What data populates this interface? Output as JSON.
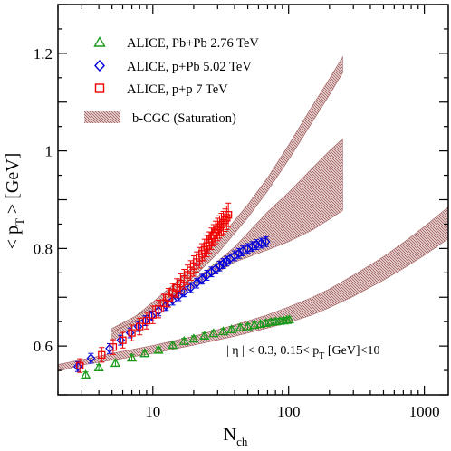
{
  "chart_data": {
    "type": "scatter",
    "xlabel": {
      "main": "N",
      "sub": "ch"
    },
    "ylabel": {
      "open": "< p",
      "sub": "T",
      "close": " > [GeV]"
    },
    "xscale": "log",
    "xlim": [
      2,
      1500
    ],
    "ylim": [
      0.5,
      1.3
    ],
    "x_ticks": [
      10,
      100,
      1000
    ],
    "x_tick_labels": [
      "10",
      "100",
      "1000"
    ],
    "y_ticks": [
      0.6,
      0.8,
      1.0,
      1.2
    ],
    "y_tick_labels": [
      "0.6",
      "0.8",
      "1",
      "1.2"
    ],
    "grid": false,
    "legend_position": "top-left",
    "annotation": {
      "part1": "| η | < 0.3,  0.15< p",
      "sub": "T",
      "part2": " [GeV]<10"
    },
    "series": [
      {
        "name": "ALICE, Pb+Pb 2.76 TeV",
        "marker": "triangle",
        "color": "#1a9a1a",
        "points": [
          [
            3.2,
            0.541
          ],
          [
            4,
            0.556
          ],
          [
            5.3,
            0.565
          ],
          [
            7,
            0.576
          ],
          [
            8.7,
            0.585
          ],
          [
            11,
            0.592
          ],
          [
            14,
            0.602
          ],
          [
            17,
            0.61
          ],
          [
            20,
            0.615
          ],
          [
            24,
            0.621
          ],
          [
            28,
            0.626
          ],
          [
            33,
            0.63
          ],
          [
            38,
            0.634
          ],
          [
            44,
            0.638
          ],
          [
            50,
            0.64
          ],
          [
            56,
            0.643
          ],
          [
            62,
            0.645
          ],
          [
            68,
            0.647
          ],
          [
            74,
            0.649
          ],
          [
            80,
            0.65
          ],
          [
            86,
            0.651
          ],
          [
            92,
            0.652
          ],
          [
            97,
            0.653
          ],
          [
            101,
            0.654
          ]
        ],
        "errors": [
          0.006,
          0.006,
          0.006,
          0.006,
          0.006,
          0.006,
          0.006,
          0.006,
          0.006,
          0.006,
          0.006,
          0.006,
          0.006,
          0.006,
          0.006,
          0.006,
          0.006,
          0.006,
          0.006,
          0.006,
          0.006,
          0.006,
          0.006,
          0.006
        ]
      },
      {
        "name": "ALICE, p+Pb 5.02 TeV",
        "marker": "diamond",
        "color": "#0000dd",
        "points": [
          [
            2.8,
            0.558
          ],
          [
            3.5,
            0.575
          ],
          [
            4.8,
            0.595
          ],
          [
            5.8,
            0.612
          ],
          [
            6.8,
            0.627
          ],
          [
            7.8,
            0.64
          ],
          [
            8.8,
            0.652
          ],
          [
            9.8,
            0.662
          ],
          [
            11,
            0.672
          ],
          [
            12.5,
            0.683
          ],
          [
            14,
            0.694
          ],
          [
            15.5,
            0.703
          ],
          [
            17,
            0.711
          ],
          [
            19,
            0.72
          ],
          [
            21,
            0.729
          ],
          [
            23,
            0.737
          ],
          [
            25,
            0.745
          ],
          [
            27,
            0.752
          ],
          [
            29,
            0.758
          ],
          [
            31,
            0.764
          ],
          [
            33,
            0.769
          ],
          [
            35,
            0.774
          ],
          [
            37,
            0.779
          ],
          [
            40,
            0.785
          ],
          [
            43,
            0.79
          ],
          [
            46,
            0.795
          ],
          [
            50,
            0.8
          ],
          [
            54,
            0.804
          ],
          [
            58,
            0.808
          ],
          [
            63,
            0.811
          ],
          [
            68,
            0.814
          ]
        ],
        "errors": [
          0.01,
          0.01,
          0.01,
          0.01,
          0.01,
          0.01,
          0.01,
          0.01,
          0.01,
          0.01,
          0.01,
          0.01,
          0.01,
          0.01,
          0.01,
          0.01,
          0.01,
          0.01,
          0.01,
          0.01,
          0.01,
          0.01,
          0.01,
          0.01,
          0.01,
          0.01,
          0.01,
          0.01,
          0.01,
          0.01,
          0.01
        ]
      },
      {
        "name": "ALICE, p+p 7 TeV",
        "marker": "square",
        "color": "#ee0000",
        "points": [
          [
            2.9,
            0.56
          ],
          [
            4.2,
            0.582
          ],
          [
            5.1,
            0.598
          ],
          [
            6,
            0.612
          ],
          [
            7,
            0.627
          ],
          [
            8,
            0.64
          ],
          [
            9,
            0.652
          ],
          [
            10,
            0.664
          ],
          [
            11,
            0.676
          ],
          [
            12,
            0.688
          ],
          [
            13,
            0.699
          ],
          [
            14,
            0.709
          ],
          [
            15,
            0.719
          ],
          [
            16,
            0.728
          ],
          [
            17,
            0.737
          ],
          [
            18,
            0.746
          ],
          [
            19,
            0.755
          ],
          [
            20,
            0.764
          ],
          [
            21,
            0.772
          ],
          [
            22,
            0.781
          ],
          [
            23,
            0.789
          ],
          [
            24,
            0.797
          ],
          [
            25,
            0.805
          ],
          [
            26,
            0.812
          ],
          [
            27,
            0.82
          ],
          [
            28,
            0.827
          ],
          [
            29,
            0.833
          ],
          [
            30,
            0.839
          ],
          [
            31,
            0.844
          ],
          [
            32,
            0.849
          ],
          [
            33,
            0.853
          ],
          [
            34,
            0.858
          ],
          [
            35,
            0.863
          ],
          [
            36,
            0.869
          ]
        ],
        "errors": [
          0.014,
          0.015,
          0.015,
          0.016,
          0.016,
          0.017,
          0.017,
          0.018,
          0.018,
          0.018,
          0.019,
          0.019,
          0.019,
          0.02,
          0.02,
          0.02,
          0.02,
          0.021,
          0.021,
          0.021,
          0.021,
          0.022,
          0.022,
          0.022,
          0.022,
          0.022,
          0.023,
          0.023,
          0.023,
          0.023,
          0.023,
          0.023,
          0.024,
          0.024
        ]
      }
    ],
    "bands": [
      {
        "name": "b-CGC (Saturation)",
        "color": "#a06060",
        "x": [
          5,
          7,
          10,
          15,
          20,
          30,
          50,
          70,
          100,
          150,
          200,
          250
        ],
        "lower": [
          0.61,
          0.638,
          0.672,
          0.71,
          0.742,
          0.79,
          0.863,
          0.918,
          0.982,
          1.06,
          1.115,
          1.16
        ],
        "upper": [
          0.625,
          0.655,
          0.69,
          0.732,
          0.765,
          0.815,
          0.89,
          0.945,
          1.012,
          1.093,
          1.148,
          1.193
        ]
      },
      {
        "name": "",
        "color": "#a06060",
        "x": [
          5,
          10,
          15,
          25,
          40,
          70,
          100,
          150,
          200,
          250
        ],
        "lower": [
          0.628,
          0.67,
          0.699,
          0.738,
          0.772,
          0.797,
          0.814,
          0.838,
          0.86,
          0.878
        ],
        "upper": [
          0.636,
          0.68,
          0.712,
          0.755,
          0.803,
          0.875,
          0.915,
          0.965,
          1.0,
          1.025
        ]
      },
      {
        "name": "",
        "color": "#a06060",
        "x": [
          2,
          3,
          5,
          10,
          20,
          40,
          70,
          100,
          150,
          200,
          300,
          500,
          700,
          1000,
          1500
        ],
        "lower": [
          0.548,
          0.561,
          0.571,
          0.585,
          0.602,
          0.62,
          0.637,
          0.648,
          0.664,
          0.679,
          0.702,
          0.735,
          0.759,
          0.786,
          0.82
        ],
        "upper": [
          0.562,
          0.572,
          0.585,
          0.601,
          0.62,
          0.643,
          0.664,
          0.68,
          0.7,
          0.717,
          0.745,
          0.783,
          0.812,
          0.845,
          0.885
        ]
      }
    ]
  }
}
